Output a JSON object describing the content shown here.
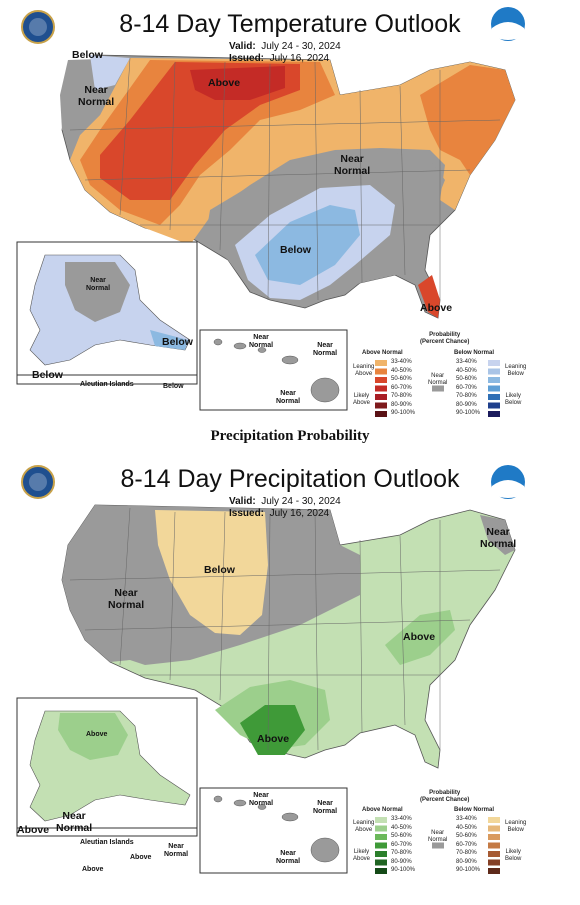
{
  "section_heading": "Precipitation Probability",
  "temp": {
    "title": "8-14 Day Temperature Outlook",
    "valid_label": "Valid:",
    "valid": "July 24 - 30, 2024",
    "issued_label": "Issued:",
    "issued": "July 16, 2024",
    "map_labels": {
      "below_nw": "Below",
      "near_normal_w": "Near\nNormal",
      "above_north": "Above",
      "near_normal_central": "Near\nNormal",
      "below_south": "Below",
      "above_fl": "Above",
      "alaska_near_normal": "Near\nNormal",
      "alaska_below_se": "Below",
      "alaska_below_sw": "Below",
      "aleutian": "Aleutian Islands",
      "aleutian_below": "Below",
      "hawaii_near_normal_1": "Near\nNormal",
      "hawaii_near_normal_2": "Near\nNormal",
      "hawaii_near_normal_3": "Near\nNormal"
    },
    "legend": {
      "title": "Probability\n(Percent Chance)",
      "above_header": "Above Normal",
      "below_header": "Below Normal",
      "leaning_above": "Leaning\nAbove",
      "likely_above": "Likely\nAbove",
      "leaning_below": "Leaning\nBelow",
      "likely_below": "Likely\nBelow",
      "near_normal": "Near\nNormal",
      "ranges": [
        "33-40%",
        "40-50%",
        "50-60%",
        "60-70%",
        "70-80%",
        "80-90%",
        "90-100%"
      ],
      "above_colors": [
        "#f0b46a",
        "#e8843e",
        "#d9472b",
        "#c42b26",
        "#a91d24",
        "#7e1a1c",
        "#5a1215"
      ],
      "below_colors": [
        "#c7d3ee",
        "#a9c4e6",
        "#8cb9e1",
        "#5f9fd5",
        "#2f6fb5",
        "#1f3f8c",
        "#1b1b5c"
      ],
      "near_color": "#9a9a9a"
    }
  },
  "precip": {
    "title": "8-14 Day Precipitation Outlook",
    "valid_label": "Valid:",
    "valid": "July 24 - 30, 2024",
    "issued_label": "Issued:",
    "issued": "July 16, 2024",
    "map_labels": {
      "near_normal_ne": "Near\nNormal",
      "below_north": "Below",
      "near_normal_w": "Near\nNormal",
      "above_east": "Above",
      "above_tx": "Above",
      "alaska_above": "Above",
      "alaska_near_normal": "Near\nNormal",
      "alaska_above_sw": "Above",
      "aleutian": "Aleutian Islands",
      "aleutian_near_normal": "Near\nNormal",
      "aleutian_above": "Above",
      "aleutian_above_2": "Above",
      "hawaii_near_normal_1": "Near\nNormal",
      "hawaii_near_normal_2": "Near\nNormal",
      "hawaii_near_normal_3": "Near\nNormal"
    },
    "legend": {
      "title": "Probability\n(Percent Chance)",
      "above_header": "Above Normal",
      "below_header": "Below Normal",
      "leaning_above": "Leaning\nAbove",
      "likely_above": "Likely\nAbove",
      "leaning_below": "Leaning\nBelow",
      "likely_below": "Likely\nBelow",
      "near_normal": "Near\nNormal",
      "ranges": [
        "33-40%",
        "40-50%",
        "50-60%",
        "60-70%",
        "70-80%",
        "80-90%",
        "90-100%"
      ],
      "above_colors": [
        "#c3e0b3",
        "#9ccf8c",
        "#6bb85a",
        "#3f9a38",
        "#2b7f2b",
        "#1f6422",
        "#144a17"
      ],
      "below_colors": [
        "#f2d79a",
        "#e6b87a",
        "#d99a5e",
        "#c47a45",
        "#a65a33",
        "#844026",
        "#5e2a1a"
      ],
      "near_color": "#9a9a9a"
    }
  }
}
